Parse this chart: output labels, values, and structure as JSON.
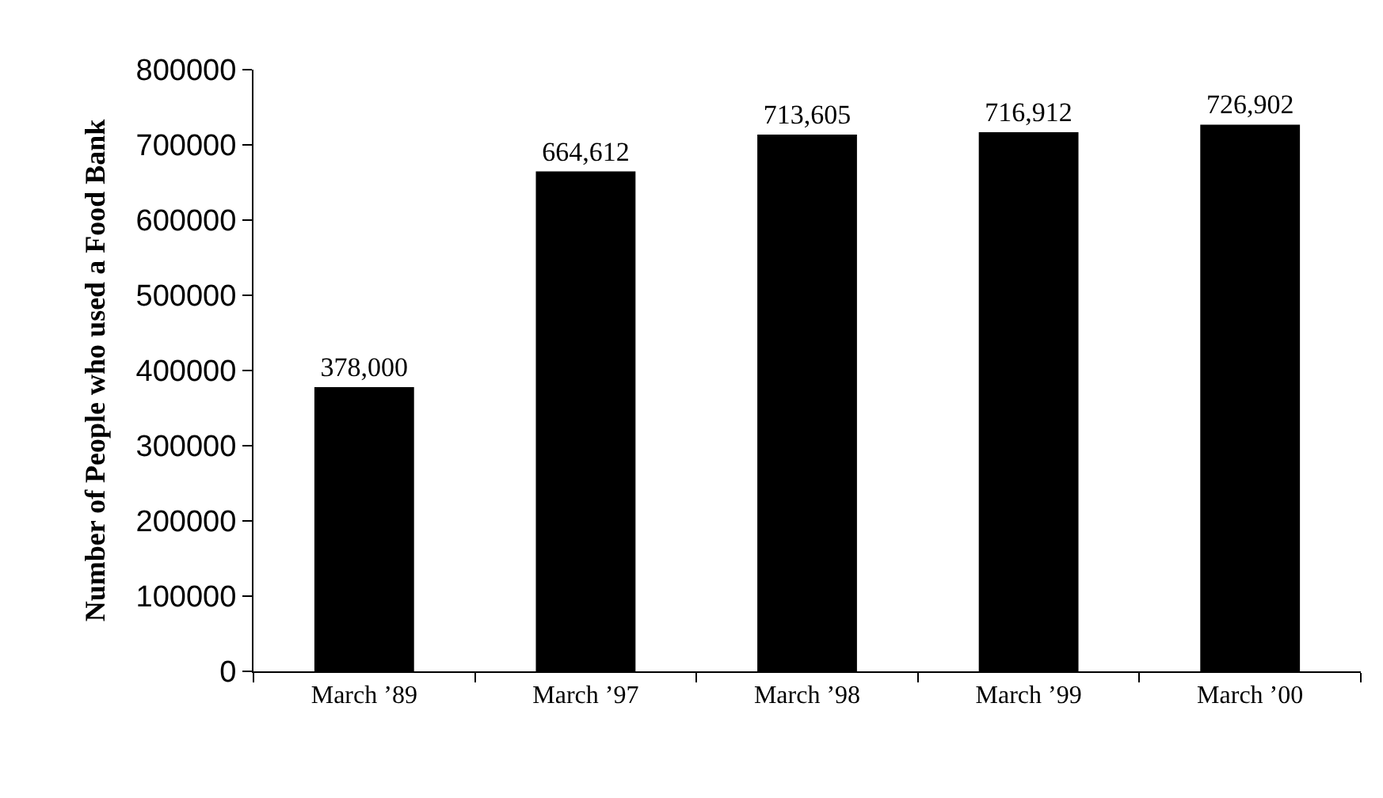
{
  "chart_data": {
    "type": "bar",
    "ylabel": "Number of People who used a Food Bank",
    "categories": [
      "March ’89",
      "March ’97",
      "March ’98",
      "March ’99",
      "March ’00"
    ],
    "values": [
      378000,
      664612,
      713605,
      716912,
      726902
    ],
    "value_labels": [
      "378,000",
      "664,612",
      "713,605",
      "716,912",
      "726,902"
    ],
    "color": "#000000",
    "yticks": [
      0,
      100000,
      200000,
      300000,
      400000,
      500000,
      600000,
      700000,
      800000
    ],
    "ylim": [
      0,
      800000
    ]
  }
}
